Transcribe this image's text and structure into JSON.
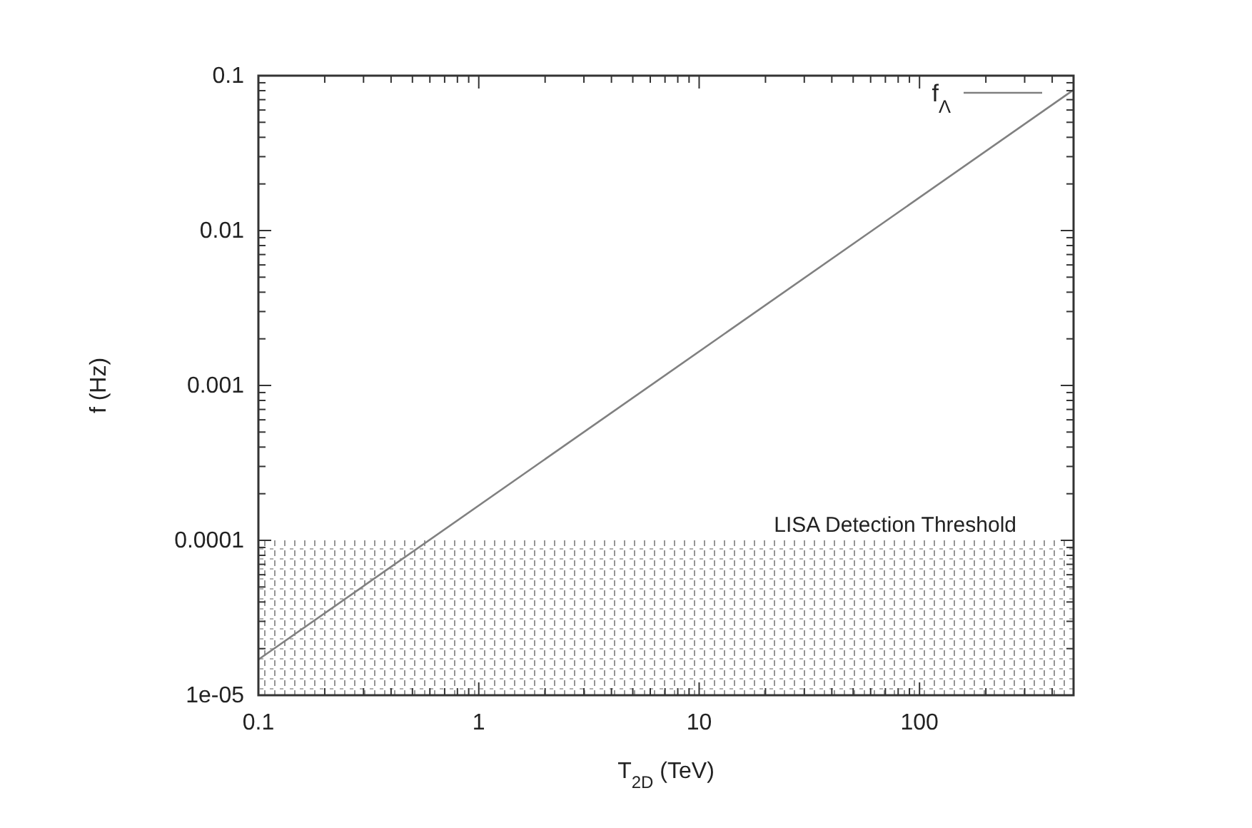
{
  "chart_data": {
    "type": "line",
    "xlabel": "T$_{2D}$ (TeV)",
    "ylabel": "f (Hz)",
    "log": "xy",
    "xlim": [
      0.1,
      500
    ],
    "ylim": [
      1e-05,
      0.1
    ],
    "xticks": [
      0.1,
      {
        "value": 0.2,
        "label": null
      },
      {
        "value": 0.3,
        "label": null
      },
      {
        "value": 0.4,
        "label": null
      },
      {
        "value": 0.5,
        "label": null
      },
      {
        "value": 0.6,
        "label": null
      },
      {
        "value": 0.7,
        "label": null
      },
      {
        "value": 0.8,
        "label": null
      },
      {
        "value": 0.9,
        "label": null
      },
      1,
      {
        "value": 2,
        "label": null
      },
      {
        "value": 3,
        "label": null
      },
      {
        "value": 4,
        "label": null
      },
      {
        "value": 5,
        "label": null
      },
      {
        "value": 6,
        "label": null
      },
      {
        "value": 7,
        "label": null
      },
      {
        "value": 8,
        "label": null
      },
      {
        "value": 9,
        "label": null
      },
      10,
      {
        "value": 20,
        "label": null
      },
      {
        "value": 30,
        "label": null
      },
      {
        "value": 40,
        "label": null
      },
      {
        "value": 50,
        "label": null
      },
      {
        "value": 60,
        "label": null
      },
      {
        "value": 70,
        "label": null
      },
      {
        "value": 80,
        "label": null
      },
      {
        "value": 90,
        "label": null
      },
      100,
      {
        "value": 200,
        "label": null
      },
      {
        "value": 300,
        "label": null
      },
      {
        "value": 400,
        "label": null
      },
      {
        "value": 500,
        "label": null
      }
    ],
    "yticks": [
      {
        "value": 1e-05,
        "label": "1e-05"
      },
      {
        "value": 2e-05,
        "label": null
      },
      {
        "value": 3e-05,
        "label": null
      },
      {
        "value": 4e-05,
        "label": null
      },
      {
        "value": 5e-05,
        "label": null
      },
      {
        "value": 6e-05,
        "label": null
      },
      {
        "value": 7e-05,
        "label": null
      },
      {
        "value": 8e-05,
        "label": null
      },
      {
        "value": 9e-05,
        "label": null
      },
      0.0001,
      {
        "value": 0.0002,
        "label": null
      },
      {
        "value": 0.0003,
        "label": null
      },
      {
        "value": 0.0004,
        "label": null
      },
      {
        "value": 0.0005,
        "label": null
      },
      {
        "value": 0.0006,
        "label": null
      },
      {
        "value": 0.0007,
        "label": null
      },
      {
        "value": 0.0008,
        "label": null
      },
      {
        "value": 0.0009,
        "label": null
      },
      0.001,
      {
        "value": 0.002,
        "label": null
      },
      {
        "value": 0.003,
        "label": null
      },
      {
        "value": 0.004,
        "label": null
      },
      {
        "value": 0.005,
        "label": null
      },
      {
        "value": 0.006,
        "label": null
      },
      {
        "value": 0.007,
        "label": null
      },
      {
        "value": 0.008,
        "label": null
      },
      {
        "value": 0.009,
        "label": null
      },
      0.01,
      {
        "value": 0.02,
        "label": null
      },
      {
        "value": 0.03,
        "label": null
      },
      {
        "value": 0.04,
        "label": null
      },
      {
        "value": 0.05,
        "label": null
      },
      {
        "value": 0.06,
        "label": null
      },
      {
        "value": 0.07,
        "label": null
      },
      {
        "value": 0.08,
        "label": null
      },
      {
        "value": 0.09,
        "label": null
      },
      0.1
    ],
    "series": [
      {
        "name": "f$_{Λ}$",
        "color": "#808080",
        "x": [
          0.1,
          500
        ],
        "values": [
          1.7e-05,
          0.081
        ]
      }
    ],
    "bands": [
      {
        "axis": "y",
        "from": 1e-05,
        "to": 0.0001,
        "label": "LISA Detection Threshold",
        "color": "#7a7a7a"
      }
    ],
    "legend": "top right",
    "grid": false,
    "marker": "none",
    "line_style": "solid"
  }
}
